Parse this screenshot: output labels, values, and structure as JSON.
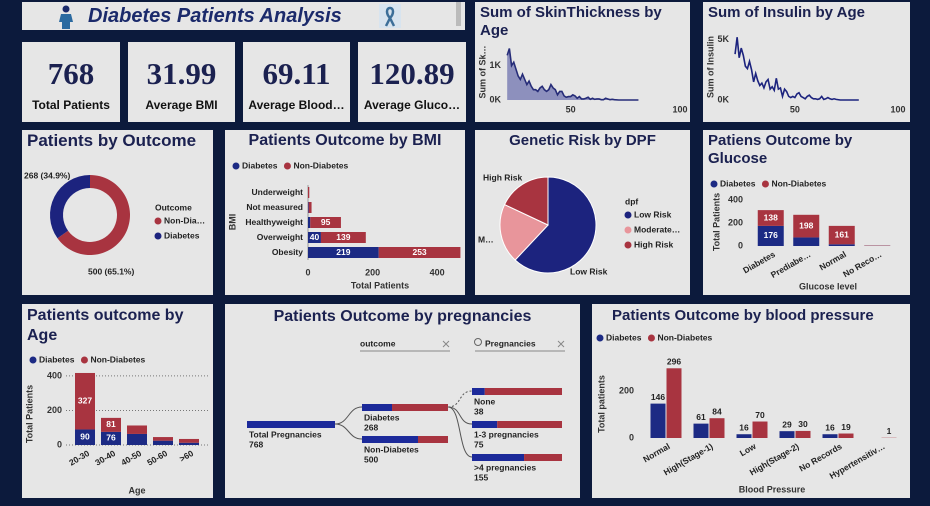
{
  "header": {
    "title": "Diabetes Patients Analysis"
  },
  "kpis": [
    {
      "value": 768,
      "label": "Total Patients"
    },
    {
      "value": 31.99,
      "label": "Average BMI"
    },
    {
      "value": 69.11,
      "label": "Average Blood…"
    },
    {
      "value": 120.89,
      "label": "Average Gluco…"
    }
  ],
  "chart_data": [
    {
      "type": "area",
      "title": "Sum of SkinThickness by Age",
      "y_label": "Sum of Sk…",
      "color": "#8d90bd",
      "line_color": "#262c78",
      "x": [
        21,
        22,
        23,
        24,
        25,
        26,
        27,
        28,
        29,
        30,
        31,
        32,
        33,
        34,
        35,
        36,
        37,
        38,
        39,
        40,
        41,
        42,
        43,
        44,
        45,
        46,
        47,
        48,
        49,
        50,
        51,
        52,
        53,
        54,
        55,
        56,
        57,
        58,
        59,
        60,
        61,
        62,
        63,
        64,
        65,
        66,
        67,
        68,
        69,
        70,
        72,
        81
      ],
      "values": [
        1300,
        1500,
        1000,
        1100,
        900,
        700,
        600,
        750,
        600,
        450,
        550,
        400,
        300,
        300,
        250,
        350,
        400,
        300,
        250,
        300,
        450,
        350,
        300,
        150,
        250,
        250,
        120,
        80,
        100,
        100,
        150,
        120,
        50,
        100,
        30,
        30,
        50,
        80,
        20,
        50,
        20,
        30,
        30,
        10,
        10,
        50,
        30,
        10,
        20,
        10,
        0,
        0
      ],
      "xlim": [
        20,
        100
      ],
      "xticks": [
        50,
        100
      ],
      "ylim": [
        0,
        1600
      ],
      "yticks": [
        {
          "value": 0,
          "label": "0K"
        },
        {
          "value": 1000,
          "label": "1K"
        }
      ]
    },
    {
      "type": "line",
      "title": "Sum of Insulin by Age",
      "y_label": "Sum of Insulin",
      "color": "#1c237e",
      "x": [
        21,
        22,
        23,
        24,
        25,
        26,
        27,
        28,
        29,
        30,
        31,
        32,
        33,
        34,
        35,
        36,
        37,
        38,
        39,
        40,
        41,
        42,
        43,
        44,
        45,
        46,
        47,
        48,
        49,
        50,
        51,
        52,
        53,
        54,
        55,
        56,
        57,
        58,
        59,
        60,
        61,
        62,
        63,
        64,
        65,
        66,
        67,
        68,
        69,
        70,
        72,
        81
      ],
      "values": [
        3800,
        5200,
        3500,
        4300,
        3700,
        2800,
        2600,
        3200,
        2500,
        1500,
        2200,
        1600,
        1200,
        1400,
        1000,
        1500,
        1700,
        900,
        1100,
        800,
        1800,
        900,
        1000,
        300,
        900,
        700,
        300,
        200,
        300,
        200,
        500,
        600,
        300,
        200,
        100,
        300,
        400,
        200,
        100,
        100,
        50,
        100,
        300,
        50,
        100,
        200,
        100,
        50,
        100,
        50,
        0,
        0
      ],
      "xlim": [
        20,
        100
      ],
      "xticks": [
        50,
        100
      ],
      "ylim": [
        0,
        5800
      ],
      "yticks": [
        {
          "value": 0,
          "label": "0K"
        },
        {
          "value": 5000,
          "label": "5K"
        }
      ]
    },
    {
      "type": "donut",
      "title": "Patients by Outcome",
      "legend_title": "Outcome",
      "categories": [
        "Non-Dia…",
        "Diabetes"
      ],
      "values": [
        500,
        268
      ],
      "value_labels": [
        "500 (65.1%)",
        "268 (34.9%)"
      ],
      "colors": [
        "#a83440",
        "#1c237e"
      ]
    },
    {
      "type": "hbar_stacked",
      "title": "Patients Outcome by BMI",
      "y_label": "BMI",
      "x_label": "Total Patients",
      "categories": [
        "Underweight",
        "Not measured",
        "Healthyweight",
        "Overweight",
        "Obesity"
      ],
      "series": [
        {
          "name": "Diabetes",
          "color": "#1c2a84",
          "values": [
            0,
            2,
            7,
            40,
            219
          ]
        },
        {
          "name": "Non-Diabetes",
          "color": "#a83440",
          "values": [
            4,
            9,
            95,
            139,
            253
          ]
        }
      ],
      "xlim": [
        0,
        480
      ],
      "xticks": [
        0,
        200,
        400
      ]
    },
    {
      "type": "pie",
      "title": "Genetic Risk by DPF",
      "legend_title": "dpf",
      "categories": [
        "Low Risk",
        "Moderate…",
        "High Risk"
      ],
      "values": [
        62,
        20,
        18
      ],
      "slice_labels": [
        "Low Risk",
        "M…",
        "High Risk"
      ],
      "colors": [
        "#1c237e",
        "#e8959b",
        "#a83440"
      ]
    },
    {
      "type": "column_stacked",
      "title": "Patiens Outcome by Glucose",
      "y_label": "Total Patients",
      "x_label": "Glucose level",
      "categories": [
        "Diabetes",
        "Prediabe…",
        "Normal",
        "No Reco…"
      ],
      "series": [
        {
          "name": "Diabetes",
          "color": "#1c2a84",
          "values": [
            176,
            75,
            15,
            2
          ]
        },
        {
          "name": "Non-Diabetes",
          "color": "#a83440",
          "values": [
            138,
            198,
            161,
            3
          ]
        }
      ],
      "ylim": [
        0,
        420
      ],
      "yticks": [
        0,
        200,
        400
      ]
    },
    {
      "type": "column_stacked",
      "title": "Patients outcome by Age",
      "y_label": "Total Patients",
      "x_label": "Age",
      "categories": [
        "20-30",
        "30-40",
        "40-50",
        "50-60",
        ">60"
      ],
      "series": [
        {
          "name": "Diabetes",
          "color": "#1c2a84",
          "values": [
            90,
            76,
            64,
            25,
            13
          ]
        },
        {
          "name": "Non-Diabetes",
          "color": "#a83440",
          "values": [
            327,
            81,
            49,
            21,
            22
          ]
        }
      ],
      "ylim": [
        0,
        440
      ],
      "yticks": [
        0,
        200,
        400
      ],
      "grid": true
    },
    {
      "type": "decomposition_tree",
      "title": "Patients Outcome by pregnancies",
      "filters": [
        "outcome",
        "Pregnancies"
      ],
      "root": {
        "label": "Total Pregnancies",
        "value": 768
      },
      "level1": [
        {
          "label": "Diabetes",
          "value": 268
        },
        {
          "label": "Non-Diabetes",
          "value": 500
        }
      ],
      "level2": [
        {
          "label": "None",
          "value": 38
        },
        {
          "label": "1-3 pregnancies",
          "value": 75
        },
        {
          "label": ">4 pregnancies",
          "value": 155
        }
      ],
      "colors": [
        "#1c2a9a",
        "#a83440"
      ]
    },
    {
      "type": "column_grouped",
      "title": "Patients Outcome by blood pressure",
      "y_label": "Total patients",
      "x_label": "Blood Pressure",
      "categories": [
        "Normal",
        "High(Stage-1)",
        "Low",
        "High(Stage-2)",
        "No Records",
        "Hypertensitiv…"
      ],
      "series": [
        {
          "name": "Diabetes",
          "color": "#1c2a84",
          "values": [
            146,
            61,
            16,
            29,
            16,
            0
          ]
        },
        {
          "name": "Non-Diabetes",
          "color": "#a83440",
          "values": [
            296,
            84,
            70,
            30,
            19,
            1
          ]
        }
      ],
      "ylim": [
        0,
        310
      ],
      "yticks": [
        0,
        200
      ]
    }
  ]
}
